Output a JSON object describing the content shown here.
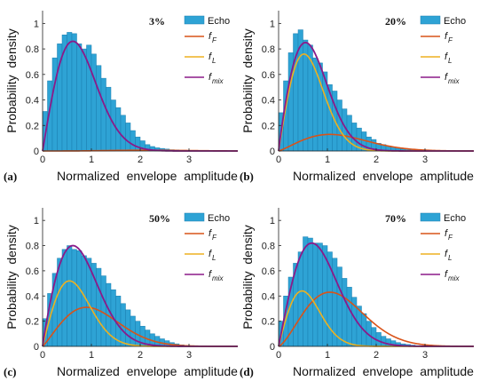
{
  "colors": {
    "echo": "#2EA3D5",
    "echo_edge": "#1B7FB0",
    "f_F": "#D95319",
    "f_L": "#EDB120",
    "f_mix": "#8B1A89"
  },
  "legend_labels": {
    "echo": "Echo",
    "f_F_main": "f",
    "f_F_sub": "F",
    "f_L_main": "f",
    "f_L_sub": "L",
    "f_mix_main": "f",
    "f_mix_sub": "mix"
  },
  "chart_data": [
    {
      "type": "bar",
      "panel_label": "(a)",
      "annotation": "3%",
      "xlabel": "Normalized  envelope  amplitude",
      "ylabel": "Probability  density",
      "xlim": [
        0,
        4
      ],
      "ylim": [
        0,
        1.1
      ],
      "xticks": [
        0,
        1,
        2,
        3
      ],
      "yticks": [
        0,
        0.2,
        0.4,
        0.6,
        0.8,
        1
      ],
      "legend_position": "top-right",
      "series": [
        {
          "key": "echo",
          "bin_width": 0.1,
          "bin_starts": [
            0,
            0.1,
            0.2,
            0.3,
            0.4,
            0.5,
            0.6,
            0.7,
            0.8,
            0.9,
            1.0,
            1.1,
            1.2,
            1.3,
            1.4,
            1.5,
            1.6,
            1.7,
            1.8,
            1.9,
            2.0,
            2.1,
            2.2,
            2.3,
            2.4,
            2.5,
            2.6,
            2.7,
            2.8,
            2.9
          ],
          "values": [
            0.31,
            0.55,
            0.73,
            0.84,
            0.91,
            0.93,
            0.92,
            0.84,
            0.8,
            0.83,
            0.76,
            0.67,
            0.57,
            0.5,
            0.4,
            0.34,
            0.28,
            0.22,
            0.16,
            0.11,
            0.08,
            0.05,
            0.035,
            0.025,
            0.02,
            0.015,
            0.01,
            0.008,
            0.005,
            0.003
          ]
        },
        {
          "key": "f_F",
          "params": {
            "mode": 2.1,
            "amp": 0.006,
            "width": 0.6
          }
        },
        {
          "key": "f_L",
          "params": {
            "mode": 0.62,
            "amp": 0.0,
            "width": 0.62
          }
        },
        {
          "key": "f_mix",
          "params": {
            "mode": 0.62,
            "amp": 0.86,
            "width": 0.62
          }
        }
      ]
    },
    {
      "type": "bar",
      "panel_label": "(b)",
      "annotation": "20%",
      "xlabel": "Normalized  envelope  amplitude",
      "ylabel": "Probability  density",
      "xlim": [
        0,
        4
      ],
      "ylim": [
        0,
        1.1
      ],
      "xticks": [
        0,
        1,
        2,
        3
      ],
      "yticks": [
        0,
        0.2,
        0.4,
        0.6,
        0.8,
        1
      ],
      "legend_position": "top-right",
      "series": [
        {
          "key": "echo",
          "bin_width": 0.1,
          "bin_starts": [
            0,
            0.1,
            0.2,
            0.3,
            0.4,
            0.5,
            0.6,
            0.7,
            0.8,
            0.9,
            1.0,
            1.1,
            1.2,
            1.3,
            1.4,
            1.5,
            1.6,
            1.7,
            1.8,
            1.9,
            2.0,
            2.1,
            2.2,
            2.3,
            2.4,
            2.5,
            2.6,
            2.7,
            2.8,
            2.9
          ],
          "values": [
            0.3,
            0.55,
            0.77,
            0.92,
            0.95,
            0.87,
            0.83,
            0.73,
            0.69,
            0.62,
            0.52,
            0.47,
            0.4,
            0.33,
            0.28,
            0.22,
            0.18,
            0.15,
            0.11,
            0.09,
            0.06,
            0.05,
            0.04,
            0.03,
            0.02,
            0.015,
            0.01,
            0.008,
            0.005,
            0.003
          ]
        },
        {
          "key": "f_F",
          "params": {
            "mode": 1.05,
            "amp": 0.13,
            "width": 0.9
          }
        },
        {
          "key": "f_L",
          "params": {
            "mode": 0.52,
            "amp": 0.76,
            "width": 0.52
          }
        },
        {
          "key": "f_mix",
          "params": {
            "mode": 0.55,
            "amp": 0.85,
            "width": 0.6
          }
        }
      ]
    },
    {
      "type": "bar",
      "panel_label": "(c)",
      "annotation": "50%",
      "xlabel": "Normalized  envelope  amplitude",
      "ylabel": "Probability  density",
      "xlim": [
        0,
        4
      ],
      "ylim": [
        0,
        1.1
      ],
      "xticks": [
        0,
        1,
        2,
        3
      ],
      "yticks": [
        0,
        0.2,
        0.4,
        0.6,
        0.8,
        1
      ],
      "legend_position": "top-right",
      "series": [
        {
          "key": "echo",
          "bin_width": 0.1,
          "bin_starts": [
            0,
            0.1,
            0.2,
            0.3,
            0.4,
            0.5,
            0.6,
            0.7,
            0.8,
            0.9,
            1.0,
            1.1,
            1.2,
            1.3,
            1.4,
            1.5,
            1.6,
            1.7,
            1.8,
            1.9,
            2.0,
            2.1,
            2.2,
            2.3,
            2.4,
            2.5,
            2.6,
            2.7,
            2.8,
            2.9
          ],
          "values": [
            0.22,
            0.42,
            0.58,
            0.7,
            0.77,
            0.8,
            0.77,
            0.76,
            0.72,
            0.7,
            0.66,
            0.62,
            0.56,
            0.5,
            0.45,
            0.4,
            0.34,
            0.29,
            0.24,
            0.2,
            0.16,
            0.13,
            0.1,
            0.08,
            0.06,
            0.045,
            0.03,
            0.02,
            0.012,
            0.006
          ]
        },
        {
          "key": "f_F",
          "params": {
            "mode": 0.9,
            "amp": 0.31,
            "width": 0.8
          }
        },
        {
          "key": "f_L",
          "params": {
            "mode": 0.55,
            "amp": 0.52,
            "width": 0.55
          }
        },
        {
          "key": "f_mix",
          "params": {
            "mode": 0.62,
            "amp": 0.8,
            "width": 0.68
          }
        }
      ]
    },
    {
      "type": "bar",
      "panel_label": "(d)",
      "annotation": "70%",
      "xlabel": "Normalized  envelope  amplitude",
      "ylabel": "Probability  density",
      "xlim": [
        0,
        4
      ],
      "ylim": [
        0,
        1.1
      ],
      "xticks": [
        0,
        1,
        2,
        3
      ],
      "yticks": [
        0,
        0.2,
        0.4,
        0.6,
        0.8,
        1
      ],
      "legend_position": "top-right",
      "series": [
        {
          "key": "echo",
          "bin_width": 0.1,
          "bin_starts": [
            0,
            0.1,
            0.2,
            0.3,
            0.4,
            0.5,
            0.6,
            0.7,
            0.8,
            0.9,
            1.0,
            1.1,
            1.2,
            1.3,
            1.4,
            1.5,
            1.6,
            1.7,
            1.8,
            1.9,
            2.0,
            2.1,
            2.2,
            2.3,
            2.4,
            2.5,
            2.6,
            2.7,
            2.8,
            2.9
          ],
          "values": [
            0.2,
            0.4,
            0.55,
            0.66,
            0.75,
            0.87,
            0.86,
            0.82,
            0.82,
            0.8,
            0.75,
            0.7,
            0.63,
            0.54,
            0.47,
            0.39,
            0.32,
            0.26,
            0.2,
            0.15,
            0.11,
            0.08,
            0.06,
            0.045,
            0.03,
            0.02,
            0.015,
            0.01,
            0.006,
            0.003
          ]
        },
        {
          "key": "f_F",
          "params": {
            "mode": 1.05,
            "amp": 0.43,
            "width": 0.75
          }
        },
        {
          "key": "f_L",
          "params": {
            "mode": 0.48,
            "amp": 0.44,
            "width": 0.48
          }
        },
        {
          "key": "f_mix",
          "params": {
            "mode": 0.68,
            "amp": 0.82,
            "width": 0.68
          }
        }
      ]
    }
  ]
}
